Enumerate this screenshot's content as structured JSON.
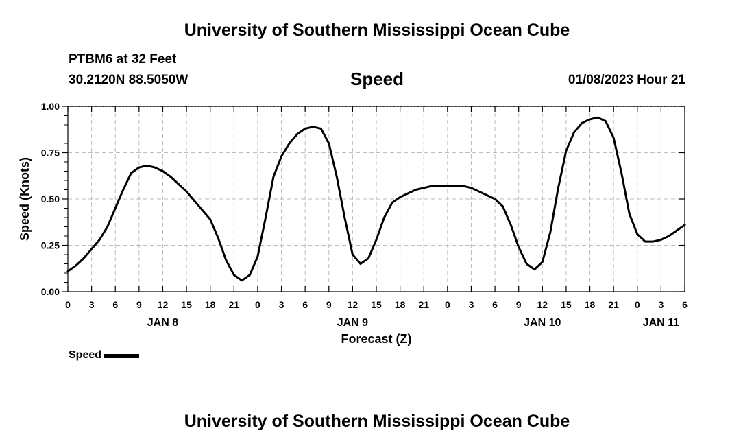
{
  "header": {
    "title": "University of Southern Mississippi Ocean Cube",
    "station": "PTBM6 at 32 Feet",
    "coordinates": "30.2120N  88.5050W",
    "parameter": "Speed",
    "timestamp": "01/08/2023 Hour 21"
  },
  "footer": {
    "title": "University of Southern Mississippi Ocean Cube"
  },
  "legend": {
    "label": "Speed"
  },
  "chart_data": {
    "type": "line",
    "title": "Speed",
    "xlabel": "Forecast (Z)",
    "ylabel": "Speed (Knots)",
    "ylim": [
      0,
      1
    ],
    "xlim": [
      0,
      78
    ],
    "grid": true,
    "legend_position": "bottom-left",
    "y_ticks": [
      "0.00",
      "0.25",
      "0.50",
      "0.75",
      "1.00"
    ],
    "x_tick_labels": [
      "0",
      "3",
      "6",
      "9",
      "12",
      "15",
      "18",
      "21",
      "0",
      "3",
      "6",
      "9",
      "12",
      "15",
      "18",
      "21",
      "0",
      "3",
      "6",
      "9",
      "12",
      "15",
      "18",
      "21",
      "0",
      "3",
      "6"
    ],
    "day_labels": [
      {
        "label": "JAN 8",
        "hour": 12
      },
      {
        "label": "JAN 9",
        "hour": 36
      },
      {
        "label": "JAN 10",
        "hour": 60
      },
      {
        "label": "JAN 11",
        "hour": 75
      }
    ],
    "series": [
      {
        "name": "Speed",
        "x": [
          0,
          1,
          2,
          3,
          4,
          5,
          6,
          7,
          8,
          9,
          10,
          11,
          12,
          13,
          14,
          15,
          16,
          17,
          18,
          19,
          20,
          21,
          22,
          23,
          24,
          25,
          26,
          27,
          28,
          29,
          30,
          31,
          32,
          33,
          34,
          35,
          36,
          37,
          38,
          39,
          40,
          41,
          42,
          43,
          44,
          45,
          46,
          47,
          48,
          49,
          50,
          51,
          52,
          53,
          54,
          55,
          56,
          57,
          58,
          59,
          60,
          61,
          62,
          63,
          64,
          65,
          66,
          67,
          68,
          69,
          70,
          71,
          72,
          73,
          74,
          75,
          76,
          77,
          78
        ],
        "values": [
          0.11,
          0.14,
          0.18,
          0.23,
          0.28,
          0.35,
          0.45,
          0.55,
          0.64,
          0.67,
          0.68,
          0.67,
          0.65,
          0.62,
          0.58,
          0.54,
          0.49,
          0.44,
          0.39,
          0.29,
          0.17,
          0.09,
          0.06,
          0.09,
          0.19,
          0.4,
          0.62,
          0.73,
          0.8,
          0.85,
          0.88,
          0.89,
          0.88,
          0.8,
          0.62,
          0.4,
          0.2,
          0.15,
          0.18,
          0.28,
          0.4,
          0.48,
          0.51,
          0.53,
          0.55,
          0.56,
          0.57,
          0.57,
          0.57,
          0.57,
          0.57,
          0.56,
          0.54,
          0.52,
          0.5,
          0.46,
          0.36,
          0.24,
          0.15,
          0.12,
          0.16,
          0.32,
          0.56,
          0.76,
          0.86,
          0.91,
          0.93,
          0.94,
          0.92,
          0.83,
          0.64,
          0.42,
          0.31,
          0.27,
          0.27,
          0.28,
          0.3,
          0.33,
          0.36
        ]
      }
    ]
  }
}
